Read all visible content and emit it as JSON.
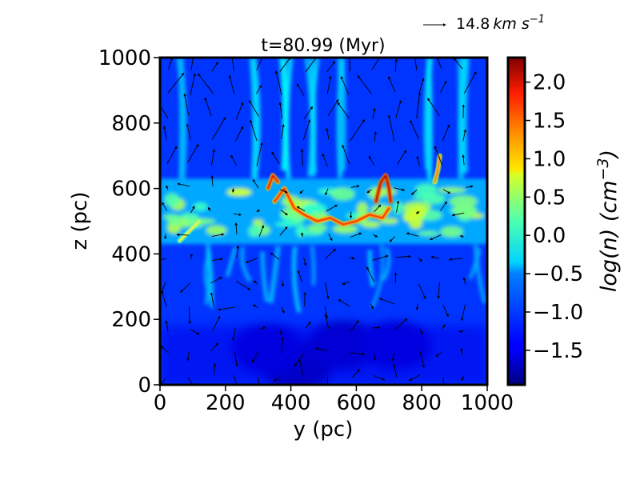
{
  "chart_data": {
    "type": "heatmap",
    "title": "t=80.99 (Myr)",
    "xlabel": "y (pc)",
    "ylabel": "z (pc)",
    "xlim": [
      0,
      1000
    ],
    "ylim": [
      0,
      1000
    ],
    "x_ticks": [
      {
        "value": 0,
        "label": "0"
      },
      {
        "value": 200,
        "label": "200"
      },
      {
        "value": 400,
        "label": "400"
      },
      {
        "value": 600,
        "label": "600"
      },
      {
        "value": 800,
        "label": "800"
      },
      {
        "value": 1000,
        "label": "1000"
      }
    ],
    "y_ticks": [
      {
        "value": 0,
        "label": "0"
      },
      {
        "value": 200,
        "label": "200"
      },
      {
        "value": 400,
        "label": "400"
      },
      {
        "value": 600,
        "label": "600"
      },
      {
        "value": 800,
        "label": "800"
      },
      {
        "value": 1000,
        "label": "1000"
      }
    ],
    "colorbar": {
      "label_main": "log(n) (cm",
      "label_exp": "−3",
      "label_close": ")",
      "range": [
        -1.95,
        2.32
      ],
      "colormap": "jet",
      "ticks": [
        {
          "value": 2.0,
          "label": "2.0"
        },
        {
          "value": 1.5,
          "label": "1.5"
        },
        {
          "value": 1.0,
          "label": "1.0"
        },
        {
          "value": 0.5,
          "label": "0.5"
        },
        {
          "value": 0.0,
          "label": "0.0"
        },
        {
          "value": -0.5,
          "label": "−0.5"
        },
        {
          "value": -1.0,
          "label": "−1.0"
        },
        {
          "value": -1.5,
          "label": "−1.5"
        }
      ]
    },
    "quiver_key": {
      "value": "14.8",
      "units_main": "km s",
      "units_exp": "−1"
    },
    "density_features": {
      "background_log_n": -1.2,
      "midplane_band": {
        "z_center": 530,
        "z_halfwidth": 70,
        "log_n": 0.2
      },
      "dense_filaments": [
        {
          "points": [
            [
              350,
              560
            ],
            [
              380,
              600
            ],
            [
              410,
              540
            ],
            [
              440,
              520
            ],
            [
              480,
              500
            ],
            [
              520,
              510
            ],
            [
              560,
              490
            ],
            [
              600,
              500
            ],
            [
              640,
              520
            ],
            [
              680,
              510
            ],
            [
              700,
              540
            ]
          ],
          "log_n": 1.8
        },
        {
          "points": [
            [
              330,
              600
            ],
            [
              345,
              640
            ],
            [
              360,
              620
            ]
          ],
          "log_n": 1.9
        },
        {
          "points": [
            [
              660,
              560
            ],
            [
              670,
              600
            ],
            [
              675,
              620
            ],
            [
              690,
              640
            ],
            [
              700,
              600
            ],
            [
              705,
              560
            ]
          ],
          "log_n": 2.1
        },
        {
          "points": [
            [
              840,
              620
            ],
            [
              850,
              660
            ],
            [
              855,
              700
            ]
          ],
          "log_n": 1.3
        },
        {
          "points": [
            [
              60,
              440
            ],
            [
              90,
              470
            ],
            [
              120,
              500
            ]
          ],
          "log_n": 0.8
        }
      ],
      "low_density_regions": [
        {
          "x": 420,
          "z": 60,
          "log_n": -1.8
        },
        {
          "x": 560,
          "z": 120,
          "log_n": -1.7
        },
        {
          "x": 720,
          "z": 120,
          "log_n": -1.6
        },
        {
          "x": 330,
          "z": 110,
          "log_n": -1.6
        }
      ],
      "upper_plumes": [
        {
          "x": 60,
          "log_n": -0.6
        },
        {
          "x": 300,
          "log_n": -0.5
        },
        {
          "x": 380,
          "log_n": -0.3
        },
        {
          "x": 460,
          "log_n": -0.4
        },
        {
          "x": 560,
          "log_n": -0.6
        },
        {
          "x": 820,
          "log_n": -0.5
        },
        {
          "x": 920,
          "log_n": -0.6
        }
      ]
    }
  }
}
